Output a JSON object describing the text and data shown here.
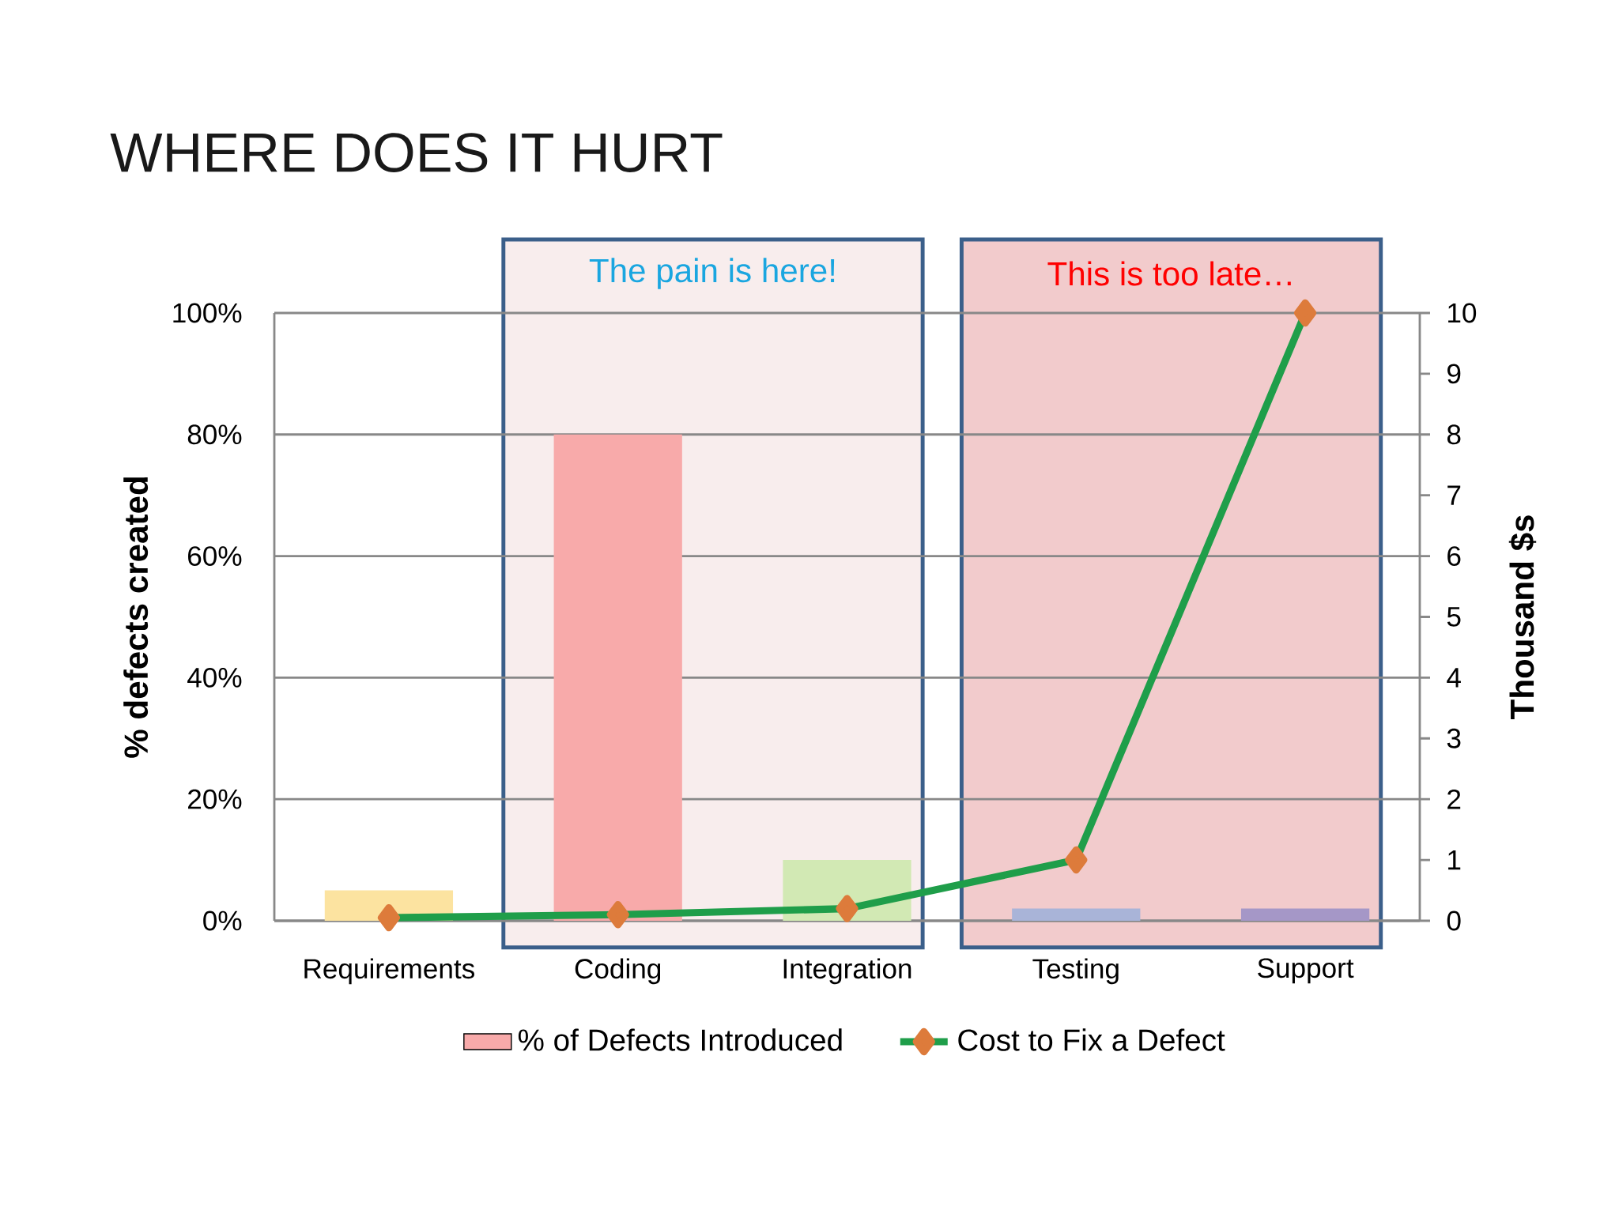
{
  "chart_data": {
    "type": "bar",
    "title": "WHERE DOES IT HURT",
    "categories": [
      "Requirements",
      "Coding",
      "Integration",
      "Testing",
      "Support"
    ],
    "series": [
      {
        "name": "% of Defects Introduced",
        "color": "#f8aaaa",
        "colors": [
          "#fce3a0",
          "#f8aaaa",
          "#d2e9b4",
          "#a9b4d8",
          "#a597c7"
        ],
        "values": [
          5,
          80,
          10,
          2,
          2
        ]
      },
      {
        "name": "Cost to Fix a Defect",
        "type": "line",
        "axis": "y2",
        "color": "#1f9e4a",
        "values": [
          0.05,
          0.1,
          0.2,
          1,
          10
        ]
      }
    ],
    "ylabel": "% defects created",
    "y2label": "Thousand $s",
    "ylim": [
      0,
      100
    ],
    "yticks": [
      {
        "value": 0,
        "label": "0%"
      },
      {
        "value": 20,
        "label": "20%"
      },
      {
        "value": 40,
        "label": "40%"
      },
      {
        "value": 60,
        "label": "60%"
      },
      {
        "value": 80,
        "label": "80%"
      },
      {
        "value": 100,
        "label": "100%"
      }
    ],
    "y2lim": [
      0,
      10
    ],
    "y2ticks": [
      0,
      1,
      2,
      3,
      4,
      5,
      6,
      7,
      8,
      9,
      10
    ],
    "bands": [
      {
        "axis": "x",
        "from": "Coding",
        "to": "Integration",
        "label": "The pain is here!",
        "color": "#f8eded"
      },
      {
        "axis": "x",
        "from": "Testing",
        "to": "Support",
        "label": "This is too late…",
        "color": "#f2cbcc"
      }
    ],
    "grid": "y",
    "legend": "bottom",
    "marker": "diamond",
    "line_style": "solid"
  }
}
